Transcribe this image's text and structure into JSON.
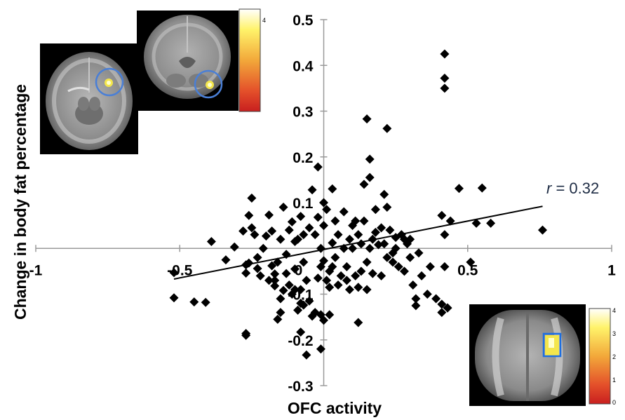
{
  "chart_data": {
    "type": "scatter",
    "title": "",
    "xlabel": "OFC activity",
    "ylabel": "Change in body fat percentage",
    "xlim": [
      -1,
      1
    ],
    "ylim": [
      -0.3,
      0.5
    ],
    "x_ticks": [
      "-1",
      "-0.5",
      "0",
      "0.5",
      "1"
    ],
    "y_ticks": [
      "0.5",
      "0.4",
      "0.3",
      "0.2",
      "0.1",
      "0",
      "-0.1",
      "-0.2",
      "-0.3"
    ],
    "marker": "diamond",
    "marker_color": "#000000",
    "grid": false,
    "annotation": {
      "var": "r",
      "text": " = 0.32"
    },
    "fit_line": {
      "x": [
        -0.52,
        0.76
      ],
      "y": [
        -0.067,
        0.092
      ]
    },
    "points": [
      [
        -0.52,
        -0.053
      ],
      [
        -0.52,
        -0.108
      ],
      [
        -0.45,
        -0.117
      ],
      [
        -0.41,
        -0.118
      ],
      [
        -0.39,
        0.015
      ],
      [
        -0.34,
        -0.025
      ],
      [
        -0.31,
        0.003
      ],
      [
        -0.28,
        0.038
      ],
      [
        -0.27,
        -0.036
      ],
      [
        -0.26,
        -0.032
      ],
      [
        -0.27,
        -0.054
      ],
      [
        -0.26,
        0.072
      ],
      [
        -0.25,
        0.11
      ],
      [
        -0.25,
        0.045
      ],
      [
        -0.24,
        0.03
      ],
      [
        -0.23,
        -0.02
      ],
      [
        -0.23,
        -0.044
      ],
      [
        -0.22,
        -0.06
      ],
      [
        -0.21,
        0.0
      ],
      [
        -0.2,
        0.027
      ],
      [
        -0.19,
        -0.07
      ],
      [
        -0.19,
        0.073
      ],
      [
        -0.18,
        0.038
      ],
      [
        -0.17,
        -0.082
      ],
      [
        -0.17,
        -0.056
      ],
      [
        -0.16,
        -0.03
      ],
      [
        -0.15,
        0.02
      ],
      [
        -0.15,
        -0.11
      ],
      [
        -0.14,
        -0.092
      ],
      [
        -0.14,
        0.09
      ],
      [
        -0.13,
        -0.013
      ],
      [
        -0.13,
        -0.055
      ],
      [
        -0.12,
        -0.08
      ],
      [
        -0.12,
        0.04
      ],
      [
        -0.11,
        0.058
      ],
      [
        -0.11,
        -0.1
      ],
      [
        -0.1,
        -0.045
      ],
      [
        -0.1,
        0.015
      ],
      [
        -0.09,
        -0.135
      ],
      [
        -0.09,
        0.02
      ],
      [
        -0.08,
        -0.09
      ],
      [
        -0.08,
        -0.12
      ],
      [
        -0.08,
        0.07
      ],
      [
        -0.07,
        0.03
      ],
      [
        -0.07,
        -0.03
      ],
      [
        -0.06,
        -0.07
      ],
      [
        -0.05,
        0.045
      ],
      [
        -0.05,
        -0.115
      ],
      [
        -0.04,
        0.128
      ],
      [
        -0.04,
        -0.148
      ],
      [
        -0.03,
        -0.14
      ],
      [
        -0.03,
        0.03
      ],
      [
        -0.02,
        0.068
      ],
      [
        -0.02,
        -0.065
      ],
      [
        -0.01,
        0.0
      ],
      [
        -0.01,
        -0.04
      ],
      [
        0.0,
        0.1
      ],
      [
        0.0,
        0.05
      ],
      [
        0.0,
        -0.027
      ],
      [
        0.01,
        0.085
      ],
      [
        0.01,
        -0.07
      ],
      [
        0.02,
        -0.05
      ],
      [
        0.02,
        -0.085
      ],
      [
        0.03,
        0.012
      ],
      [
        0.03,
        -0.04
      ],
      [
        0.04,
        0.06
      ],
      [
        0.04,
        -0.02
      ],
      [
        0.05,
        0.03
      ],
      [
        0.05,
        -0.08
      ],
      [
        0.06,
        -0.06
      ],
      [
        0.07,
        0.0
      ],
      [
        0.07,
        0.08
      ],
      [
        0.08,
        -0.04
      ],
      [
        0.08,
        -0.07
      ],
      [
        0.09,
        0.02
      ],
      [
        0.09,
        -0.09
      ],
      [
        0.1,
        0.05
      ],
      [
        0.1,
        0.0
      ],
      [
        0.11,
        -0.06
      ],
      [
        0.11,
        0.06
      ],
      [
        0.12,
        -0.085
      ],
      [
        0.12,
        0.03
      ],
      [
        0.13,
        0.01
      ],
      [
        0.13,
        -0.05
      ],
      [
        0.14,
        0.14
      ],
      [
        0.14,
        0.06
      ],
      [
        0.15,
        -0.03
      ],
      [
        0.15,
        -0.09
      ],
      [
        0.16,
        0.155
      ],
      [
        0.16,
        0.0
      ],
      [
        0.17,
        0.02
      ],
      [
        0.17,
        -0.055
      ],
      [
        0.18,
        0.035
      ],
      [
        0.18,
        0.085
      ],
      [
        0.19,
        0.008
      ],
      [
        0.2,
        -0.06
      ],
      [
        0.2,
        0.045
      ],
      [
        0.21,
        0.01
      ],
      [
        0.22,
        -0.02
      ],
      [
        0.22,
        0.09
      ],
      [
        0.23,
        0.04
      ],
      [
        0.24,
        -0.03
      ],
      [
        0.25,
        0.0
      ],
      [
        0.25,
        0.024
      ],
      [
        0.26,
        -0.04
      ],
      [
        0.27,
        0.03
      ],
      [
        0.28,
        -0.05
      ],
      [
        0.29,
        0.01
      ],
      [
        0.3,
        0.02
      ],
      [
        0.3,
        -0.02
      ],
      [
        -0.02,
        0.178
      ],
      [
        0.03,
        0.13
      ],
      [
        0.15,
        0.283
      ],
      [
        0.16,
        0.195
      ],
      [
        0.21,
        0.118
      ],
      [
        0.22,
        0.262
      ],
      [
        0.24,
        -0.01
      ],
      [
        0.28,
        0.02
      ],
      [
        0.31,
        -0.08
      ],
      [
        0.32,
        -0.11
      ],
      [
        0.33,
        -0.01
      ],
      [
        0.34,
        -0.06
      ],
      [
        0.37,
        -0.04
      ],
      [
        0.42,
        0.425
      ],
      [
        0.42,
        0.372
      ],
      [
        0.42,
        0.35
      ],
      [
        0.41,
        0.072
      ],
      [
        0.42,
        0.03
      ],
      [
        0.42,
        -0.04
      ],
      [
        0.43,
        -0.13
      ],
      [
        0.44,
        0.06
      ],
      [
        0.47,
        0.131
      ],
      [
        0.51,
        -0.03
      ],
      [
        0.53,
        0.055
      ],
      [
        0.58,
        0.055
      ],
      [
        0.76,
        0.04
      ],
      [
        0.55,
        0.132
      ],
      [
        -0.16,
        -0.155
      ],
      [
        -0.17,
        -0.07
      ],
      [
        -0.27,
        -0.186
      ],
      [
        -0.27,
        -0.19
      ],
      [
        -0.18,
        -0.038
      ],
      [
        -0.15,
        -0.14
      ],
      [
        -0.08,
        -0.183
      ],
      [
        -0.06,
        -0.233
      ],
      [
        -0.07,
        -0.124
      ],
      [
        -0.01,
        -0.22
      ],
      [
        -0.01,
        -0.145
      ],
      [
        0.02,
        -0.145
      ],
      [
        0.12,
        -0.162
      ],
      [
        0.0,
        -0.157
      ],
      [
        -0.1,
        -0.09
      ],
      [
        0.36,
        -0.1
      ],
      [
        0.39,
        -0.11
      ],
      [
        0.41,
        -0.122
      ],
      [
        0.41,
        -0.14
      ],
      [
        0.43,
        -0.13
      ],
      [
        0.32,
        -0.125
      ]
    ]
  },
  "colors": {
    "background": "#ffffff",
    "marker": "#000000",
    "axis": "#9a9a9a",
    "fit_line": "#000000",
    "annotation": "#1f2d45",
    "circle": "#4a7fd6",
    "box": "#1e6fe0"
  },
  "insets": {
    "axial": {
      "icon": "brain-axial-scan"
    },
    "coronal": {
      "icon": "brain-coronal-scan",
      "colorbar_label": "4"
    },
    "frontal": {
      "icon": "brain-frontal-scan",
      "colorbar_labels": [
        "4",
        "3",
        "2",
        "1",
        "0"
      ]
    }
  }
}
